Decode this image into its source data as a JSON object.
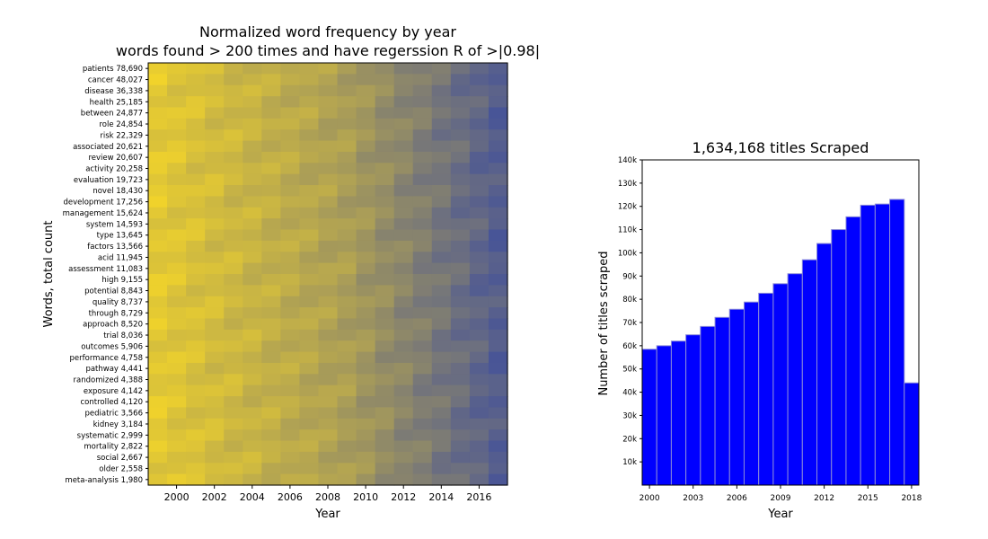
{
  "chart_data": [
    {
      "type": "heatmap",
      "title": "Normalized word frequency by year",
      "subtitle": "words found > 200 times and have regerssion R of >|0.98|",
      "xlabel": "Year",
      "ylabel": "Words, total count",
      "x_years": [
        1999,
        2000,
        2001,
        2002,
        2003,
        2004,
        2005,
        2006,
        2007,
        2008,
        2009,
        2010,
        2011,
        2012,
        2013,
        2014,
        2015,
        2016,
        2017
      ],
      "x_ticks": [
        "2000",
        "2002",
        "2004",
        "2006",
        "2008",
        "2010",
        "2012",
        "2014",
        "2016"
      ],
      "rows": [
        {
          "label": "patients 78,690",
          "trend": "decreasing"
        },
        {
          "label": "cancer 48,027",
          "trend": "decreasing"
        },
        {
          "label": "disease 36,338",
          "trend": "decreasing"
        },
        {
          "label": "health 25,185",
          "trend": "decreasing"
        },
        {
          "label": "between 24,877",
          "trend": "decreasing"
        },
        {
          "label": "role 24,854",
          "trend": "decreasing"
        },
        {
          "label": "risk 22,329",
          "trend": "decreasing"
        },
        {
          "label": "associated 20,621",
          "trend": "decreasing"
        },
        {
          "label": "review 20,607",
          "trend": "decreasing"
        },
        {
          "label": "activity 20,258",
          "trend": "decreasing"
        },
        {
          "label": "evaluation 19,723",
          "trend": "decreasing"
        },
        {
          "label": "novel 18,430",
          "trend": "decreasing"
        },
        {
          "label": "development 17,256",
          "trend": "decreasing"
        },
        {
          "label": "management 15,624",
          "trend": "decreasing"
        },
        {
          "label": "system 14,593",
          "trend": "decreasing"
        },
        {
          "label": "type 13,645",
          "trend": "decreasing"
        },
        {
          "label": "factors 13,566",
          "trend": "decreasing"
        },
        {
          "label": "acid 11,945",
          "trend": "decreasing"
        },
        {
          "label": "assessment 11,083",
          "trend": "decreasing"
        },
        {
          "label": "high 9,155",
          "trend": "decreasing"
        },
        {
          "label": "potential 8,843",
          "trend": "decreasing"
        },
        {
          "label": "quality 8,737",
          "trend": "decreasing"
        },
        {
          "label": "through 8,729",
          "trend": "decreasing"
        },
        {
          "label": "approach 8,520",
          "trend": "decreasing"
        },
        {
          "label": "trial 8,036",
          "trend": "decreasing"
        },
        {
          "label": "outcomes 5,906",
          "trend": "decreasing"
        },
        {
          "label": "performance 4,758",
          "trend": "decreasing"
        },
        {
          "label": "pathway 4,441",
          "trend": "decreasing"
        },
        {
          "label": "randomized 4,388",
          "trend": "decreasing"
        },
        {
          "label": "exposure 4,142",
          "trend": "decreasing"
        },
        {
          "label": "controlled 4,120",
          "trend": "decreasing"
        },
        {
          "label": "pediatric 3,566",
          "trend": "decreasing"
        },
        {
          "label": "kidney 3,184",
          "trend": "decreasing"
        },
        {
          "label": "systematic 2,999",
          "trend": "decreasing"
        },
        {
          "label": "mortality 2,822",
          "trend": "decreasing"
        },
        {
          "label": "social 2,667",
          "trend": "decreasing"
        },
        {
          "label": "older 2,558",
          "trend": "decreasing"
        },
        {
          "label": "meta-analysis 1,980",
          "trend": "decreasing"
        }
      ],
      "colors": {
        "high": "#f2d42a",
        "low": "#3a4aa0"
      }
    },
    {
      "type": "bar",
      "title": "1,634,168 titles Scraped",
      "xlabel": "Year",
      "ylabel": "Number of titles scraped",
      "categories": [
        "2000",
        "2001",
        "2002",
        "2003",
        "2004",
        "2005",
        "2006",
        "2007",
        "2008",
        "2009",
        "2010",
        "2011",
        "2012",
        "2013",
        "2014",
        "2015",
        "2016",
        "2017",
        "2018"
      ],
      "values": [
        58500,
        60000,
        62000,
        64700,
        68300,
        72200,
        75700,
        78800,
        82600,
        86700,
        91000,
        97000,
        104000,
        110000,
        115500,
        120500,
        121000,
        123000,
        44000
      ],
      "x_ticks": [
        "2000",
        "2003",
        "2006",
        "2009",
        "2012",
        "2015",
        "2018"
      ],
      "y_ticks": [
        "10k",
        "20k",
        "30k",
        "40k",
        "50k",
        "60k",
        "70k",
        "80k",
        "90k",
        "100k",
        "110k",
        "120k",
        "130k",
        "140k"
      ],
      "ylim": [
        0,
        140000
      ],
      "bar_color": "#0000ff"
    }
  ]
}
